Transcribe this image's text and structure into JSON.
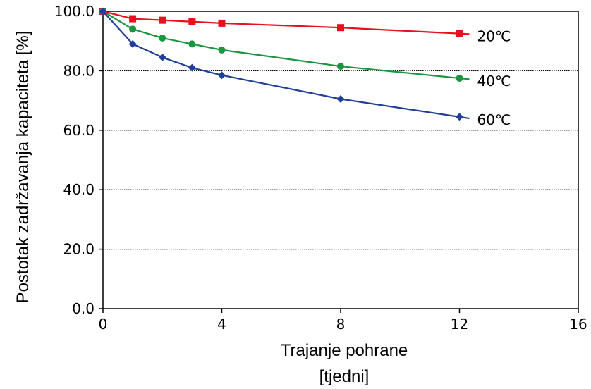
{
  "chart_data": {
    "type": "line",
    "xlabel": "Trajanje pohrane",
    "xlabel_unit": "[tjedni]",
    "ylabel": "Postotak zadržavanja kapaciteta [%]",
    "xlim": [
      0,
      16
    ],
    "ylim": [
      0,
      100
    ],
    "x_ticks": [
      "0",
      "4",
      "8",
      "12",
      "16"
    ],
    "y_ticks": [
      "0.0",
      "20.0",
      "40.0",
      "60.0",
      "80.0",
      "100.0"
    ],
    "grid": "horizontal-dotted",
    "series": [
      {
        "name": "20℃",
        "color": "#e8101e",
        "marker": "square",
        "x": [
          0,
          1,
          2,
          3,
          4,
          8,
          12
        ],
        "y": [
          100.0,
          97.5,
          97.0,
          96.5,
          96.0,
          94.5,
          92.5
        ]
      },
      {
        "name": "40℃",
        "color": "#1a9640",
        "marker": "circle",
        "x": [
          0,
          1,
          2,
          3,
          4,
          8,
          12
        ],
        "y": [
          100.0,
          94.0,
          91.0,
          89.0,
          87.0,
          81.5,
          77.5
        ]
      },
      {
        "name": "60℃",
        "color": "#1f3f9a",
        "marker": "diamond",
        "x": [
          0,
          1,
          2,
          3,
          4,
          8,
          12
        ],
        "y": [
          100.0,
          89.0,
          84.5,
          81.0,
          78.5,
          70.5,
          64.5
        ]
      }
    ]
  }
}
